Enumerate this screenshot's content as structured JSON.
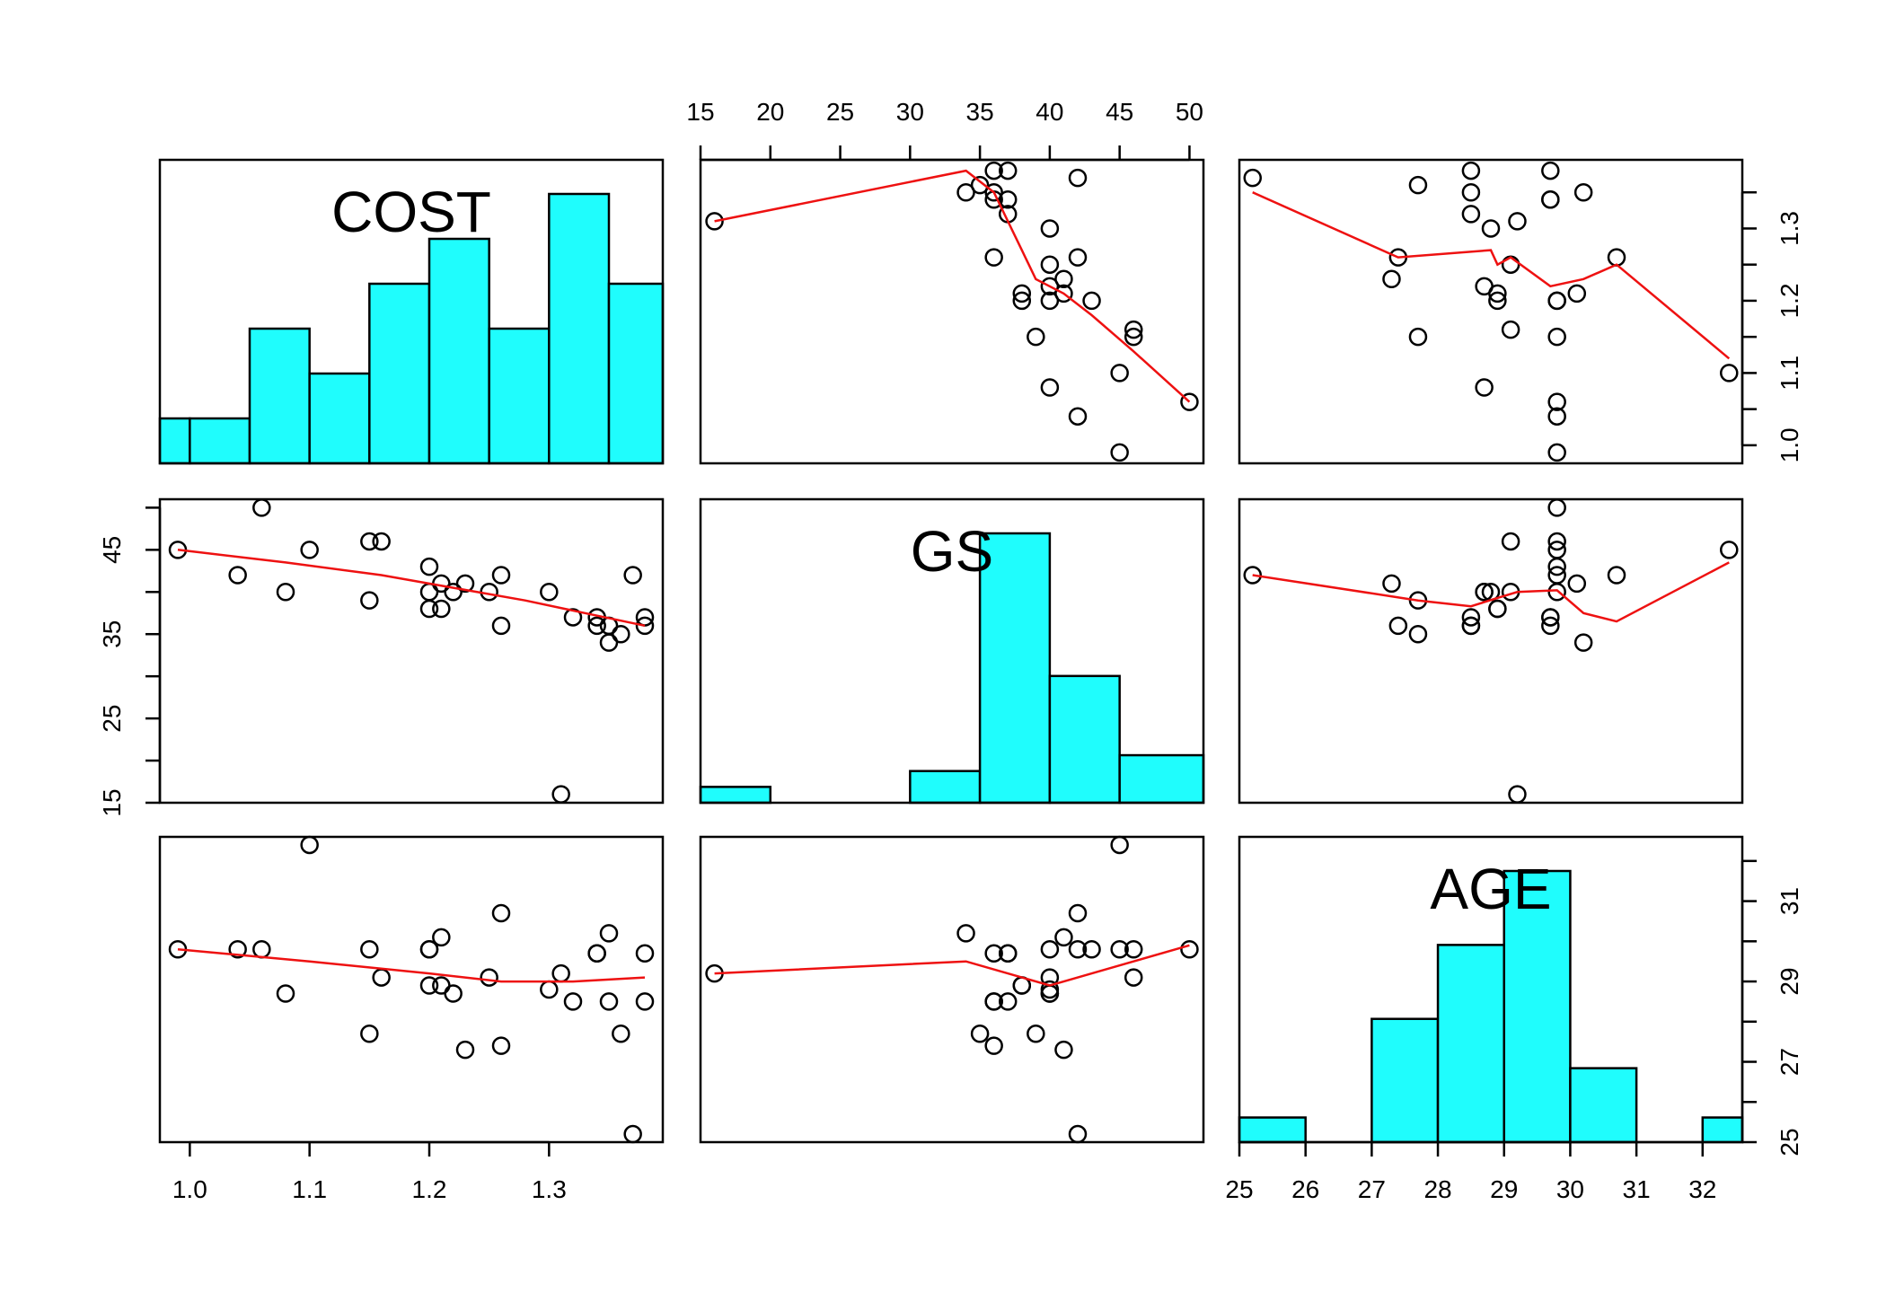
{
  "chart_data": {
    "type": "scatter",
    "title": "",
    "variables": [
      "COST",
      "GS",
      "AGE"
    ],
    "colors": {
      "histogram_fill": "#1ffdfd",
      "smoother": "#ee1111",
      "points": "#000000"
    },
    "ranges": {
      "COST": [
        0.975,
        1.395
      ],
      "GS": [
        15,
        51
      ],
      "AGE": [
        25,
        32.6
      ]
    },
    "ticks": {
      "COST": {
        "values": [
          1.0,
          1.1,
          1.2,
          1.3
        ],
        "labels": [
          "1.0",
          "1.1",
          "1.2",
          "1.3"
        ]
      },
      "GS": {
        "values": [
          15,
          20,
          25,
          30,
          35,
          40,
          45,
          50
        ],
        "labels": [
          "15",
          "20",
          "25",
          "30",
          "35",
          "40",
          "45",
          "50"
        ]
      },
      "GS_left": {
        "values": [
          15,
          20,
          25,
          30,
          35,
          40,
          45,
          50
        ],
        "labels": [
          "15",
          "",
          "25",
          "",
          "35",
          "",
          "45",
          ""
        ]
      },
      "COST_right": {
        "values": [
          1.0,
          1.05,
          1.1,
          1.15,
          1.2,
          1.25,
          1.3,
          1.35
        ],
        "labels": [
          "1.0",
          "",
          "1.1",
          "",
          "1.2",
          "",
          "1.3",
          ""
        ]
      },
      "AGE_right": {
        "values": [
          25,
          26,
          27,
          28,
          29,
          30,
          31,
          32
        ],
        "labels": [
          "25",
          "",
          "27",
          "",
          "29",
          "",
          "31",
          ""
        ]
      },
      "AGE_bottom": {
        "values": [
          25,
          26,
          27,
          28,
          29,
          30,
          31,
          32
        ],
        "labels": [
          "25",
          "26",
          "27",
          "28",
          "29",
          "30",
          "31",
          "32"
        ]
      }
    },
    "observations": [
      {
        "COST": 0.99,
        "GS": 45,
        "AGE": 29.8
      },
      {
        "COST": 1.04,
        "GS": 42,
        "AGE": 29.8
      },
      {
        "COST": 1.06,
        "GS": 50,
        "AGE": 29.8
      },
      {
        "COST": 1.08,
        "GS": 40,
        "AGE": 28.7
      },
      {
        "COST": 1.1,
        "GS": 45,
        "AGE": 32.4
      },
      {
        "COST": 1.15,
        "GS": 46,
        "AGE": 29.8
      },
      {
        "COST": 1.15,
        "GS": 39,
        "AGE": 27.7
      },
      {
        "COST": 1.16,
        "GS": 46,
        "AGE": 29.1
      },
      {
        "COST": 1.2,
        "GS": 43,
        "AGE": 29.8
      },
      {
        "COST": 1.2,
        "GS": 40,
        "AGE": 29.8
      },
      {
        "COST": 1.2,
        "GS": 38,
        "AGE": 28.9
      },
      {
        "COST": 1.21,
        "GS": 41,
        "AGE": 30.1
      },
      {
        "COST": 1.21,
        "GS": 38,
        "AGE": 28.9
      },
      {
        "COST": 1.22,
        "GS": 40,
        "AGE": 28.7
      },
      {
        "COST": 1.23,
        "GS": 41,
        "AGE": 27.3
      },
      {
        "COST": 1.25,
        "GS": 40,
        "AGE": 29.1
      },
      {
        "COST": 1.26,
        "GS": 42,
        "AGE": 30.7
      },
      {
        "COST": 1.26,
        "GS": 36,
        "AGE": 27.4
      },
      {
        "COST": 1.3,
        "GS": 40,
        "AGE": 28.8
      },
      {
        "COST": 1.31,
        "GS": 16,
        "AGE": 29.2
      },
      {
        "COST": 1.32,
        "GS": 37,
        "AGE": 28.5
      },
      {
        "COST": 1.34,
        "GS": 37,
        "AGE": 29.7
      },
      {
        "COST": 1.34,
        "GS": 36,
        "AGE": 29.7
      },
      {
        "COST": 1.35,
        "GS": 34,
        "AGE": 30.2
      },
      {
        "COST": 1.35,
        "GS": 36,
        "AGE": 28.5
      },
      {
        "COST": 1.36,
        "GS": 35,
        "AGE": 27.7
      },
      {
        "COST": 1.37,
        "GS": 42,
        "AGE": 25.2
      },
      {
        "COST": 1.38,
        "GS": 37,
        "AGE": 29.7
      },
      {
        "COST": 1.38,
        "GS": 36,
        "AGE": 28.5
      }
    ],
    "histograms": {
      "COST": {
        "breaks": [
          0.975,
          1.0,
          1.05,
          1.1,
          1.15,
          1.2,
          1.25,
          1.3,
          1.35,
          1.395
        ],
        "heights": [
          1,
          1,
          3,
          2,
          4,
          5,
          3,
          6,
          4
        ]
      },
      "GS": {
        "breaks": [
          15,
          20,
          25,
          30,
          35,
          40,
          45,
          51
        ],
        "heights": [
          1,
          0,
          0,
          2,
          17,
          8,
          3
        ]
      },
      "AGE": {
        "breaks": [
          25,
          26,
          27,
          28,
          29,
          30,
          31,
          32,
          32.6
        ],
        "heights": [
          1,
          0,
          5,
          8,
          11,
          3,
          0,
          1
        ]
      }
    },
    "smoothers": [
      {
        "row": "COST",
        "col": "GS",
        "points": [
          [
            16,
            1.31
          ],
          [
            34,
            1.38
          ],
          [
            36,
            1.35
          ],
          [
            38,
            1.27
          ],
          [
            39,
            1.23
          ],
          [
            41,
            1.21
          ],
          [
            43,
            1.18
          ],
          [
            46,
            1.13
          ],
          [
            50,
            1.06
          ]
        ]
      },
      {
        "row": "COST",
        "col": "AGE",
        "points": [
          [
            25.2,
            1.35
          ],
          [
            27.4,
            1.26
          ],
          [
            28.8,
            1.27
          ],
          [
            28.9,
            1.25
          ],
          [
            29.1,
            1.26
          ],
          [
            29.7,
            1.22
          ],
          [
            30.2,
            1.23
          ],
          [
            30.7,
            1.25
          ],
          [
            32.4,
            1.12
          ]
        ]
      },
      {
        "row": "GS",
        "col": "COST",
        "points": [
          [
            0.99,
            45
          ],
          [
            1.08,
            43.5
          ],
          [
            1.16,
            42
          ],
          [
            1.22,
            40.5
          ],
          [
            1.28,
            39
          ],
          [
            1.33,
            37.5
          ],
          [
            1.38,
            36
          ]
        ]
      },
      {
        "row": "GS",
        "col": "AGE",
        "points": [
          [
            25.2,
            42
          ],
          [
            27.7,
            39
          ],
          [
            28.5,
            38.3
          ],
          [
            28.9,
            39.3
          ],
          [
            29.2,
            40
          ],
          [
            29.8,
            40.2
          ],
          [
            30.2,
            37.5
          ],
          [
            30.7,
            36.5
          ],
          [
            32.4,
            43.5
          ]
        ]
      },
      {
        "row": "AGE",
        "col": "COST",
        "points": [
          [
            0.99,
            29.8
          ],
          [
            1.1,
            29.5
          ],
          [
            1.2,
            29.2
          ],
          [
            1.26,
            29.0
          ],
          [
            1.32,
            29.0
          ],
          [
            1.38,
            29.1
          ]
        ]
      },
      {
        "row": "AGE",
        "col": "GS",
        "points": [
          [
            16,
            29.2
          ],
          [
            34,
            29.5
          ],
          [
            38,
            29.1
          ],
          [
            40,
            28.9
          ],
          [
            41,
            29.0
          ],
          [
            46,
            29.5
          ],
          [
            50,
            29.9
          ]
        ]
      }
    ]
  }
}
